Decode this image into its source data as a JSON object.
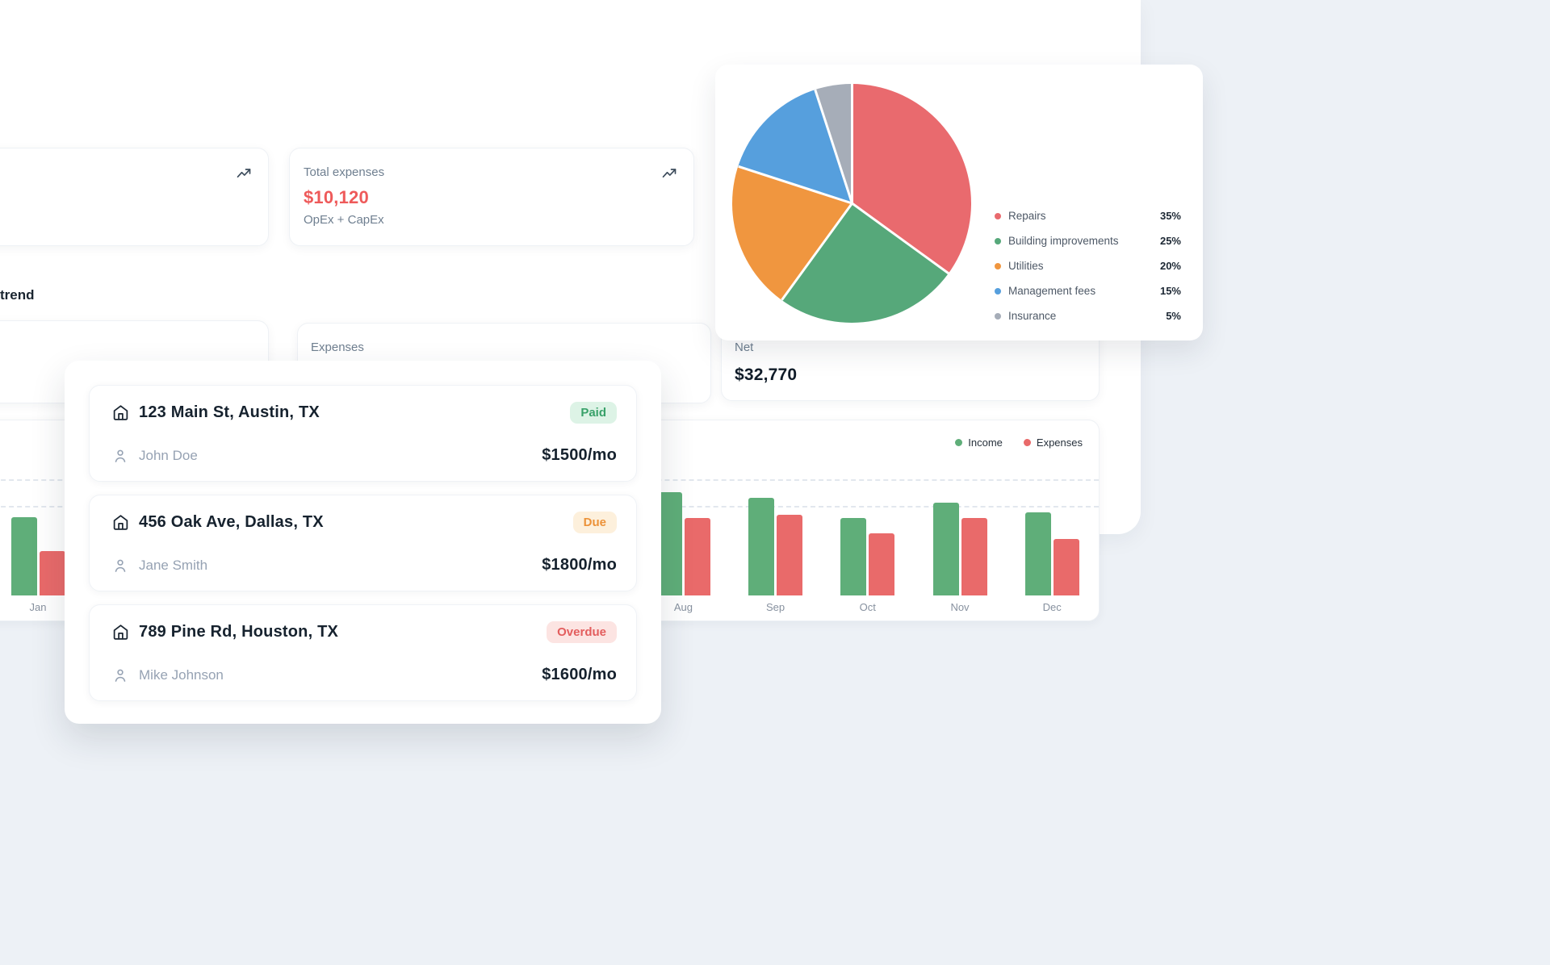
{
  "colors": {
    "page_bg": "#edf1f6",
    "accent_red": "#ee5a5a",
    "income_green": "#5fae79",
    "expense_red": "#e96a6a"
  },
  "icons": {
    "metric_card_icon": "line-chart-icon",
    "property_icon": "house-icon",
    "tenant_icon": "person-icon"
  },
  "metric_cards": {
    "total_expenses": {
      "label": "Total expenses",
      "value": "$10,120",
      "subtitle": "OpEx + CapEx"
    }
  },
  "section_heading": "trend",
  "summary_cards": {
    "expenses": {
      "label": "Expenses"
    },
    "net": {
      "label": "Net",
      "value": "$32,770"
    }
  },
  "properties": [
    {
      "address": "123 Main St, Austin, TX",
      "tenant": "John Doe",
      "rent": "$1500/mo",
      "status": "Paid"
    },
    {
      "address": "456 Oak Ave, Dallas, TX",
      "tenant": "Jane Smith",
      "rent": "$1800/mo",
      "status": "Due"
    },
    {
      "address": "789 Pine Rd, Houston, TX",
      "tenant": "Mike Johnson",
      "rent": "$1600/mo",
      "status": "Overdue"
    }
  ],
  "badges": {
    "Paid": {
      "text": "#38a169",
      "bg": "#ddf3e6"
    },
    "Due": {
      "text": "#ec9239",
      "bg": "#fdf0dc"
    },
    "Overdue": {
      "text": "#e35d5d",
      "bg": "#fce4e2"
    }
  },
  "chart_data": [
    {
      "type": "pie",
      "labels": [
        "Repairs",
        "Building improvements",
        "Utilities",
        "Management fees",
        "Insurance"
      ],
      "values": [
        35,
        25,
        20,
        15,
        5
      ],
      "value_labels": [
        "35%",
        "25%",
        "20%",
        "15%",
        "5%"
      ],
      "colors": [
        "#e96a6e",
        "#56a87a",
        "#f0963f",
        "#569fdd",
        "#a6adb8"
      ],
      "legend_position": "right",
      "start_angle_deg": 0,
      "direction": "clockwise"
    },
    {
      "type": "bar",
      "categories": [
        "Jan",
        "Aug",
        "Sep",
        "Oct",
        "Nov",
        "Dec"
      ],
      "category_slots": [
        0,
        7,
        8,
        9,
        10,
        11
      ],
      "series": [
        {
          "name": "Income",
          "color": "#5fae79",
          "values": [
            97,
            128,
            121,
            96,
            115,
            103
          ]
        },
        {
          "name": "Expenses",
          "color": "#e96a6a",
          "values": [
            55,
            96,
            100,
            77,
            96,
            70
          ]
        }
      ],
      "values_are_pixel_heights": true,
      "legend_position": "top-right",
      "grid": "dashed-horizontal"
    }
  ]
}
